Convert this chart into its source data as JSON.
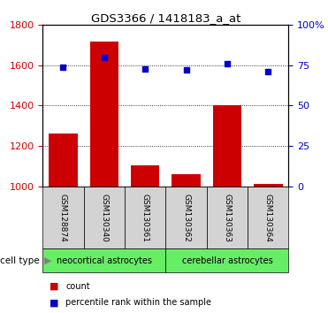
{
  "title": "GDS3366 / 1418183_a_at",
  "samples": [
    "GSM128874",
    "GSM130340",
    "GSM130361",
    "GSM130362",
    "GSM130363",
    "GSM130364"
  ],
  "counts": [
    1260,
    1720,
    1105,
    1060,
    1400,
    1010
  ],
  "percentiles": [
    74,
    80,
    73,
    72,
    76,
    71
  ],
  "ylim_left": [
    1000,
    1800
  ],
  "ylim_right": [
    0,
    100
  ],
  "yticks_left": [
    1000,
    1200,
    1400,
    1600,
    1800
  ],
  "yticks_right": [
    0,
    25,
    50,
    75,
    100
  ],
  "bar_color": "#cc0000",
  "scatter_color": "#0000cc",
  "group1_label": "neocortical astrocytes",
  "group2_label": "cerebellar astrocytes",
  "group_color": "#66ee66",
  "cell_type_label": "cell type",
  "legend_count": "count",
  "legend_pct": "percentile rank within the sample",
  "bar_width": 0.7,
  "tick_label_bg": "#d3d3d3",
  "grid_color": "black",
  "n_group1": 3,
  "n_group2": 3
}
